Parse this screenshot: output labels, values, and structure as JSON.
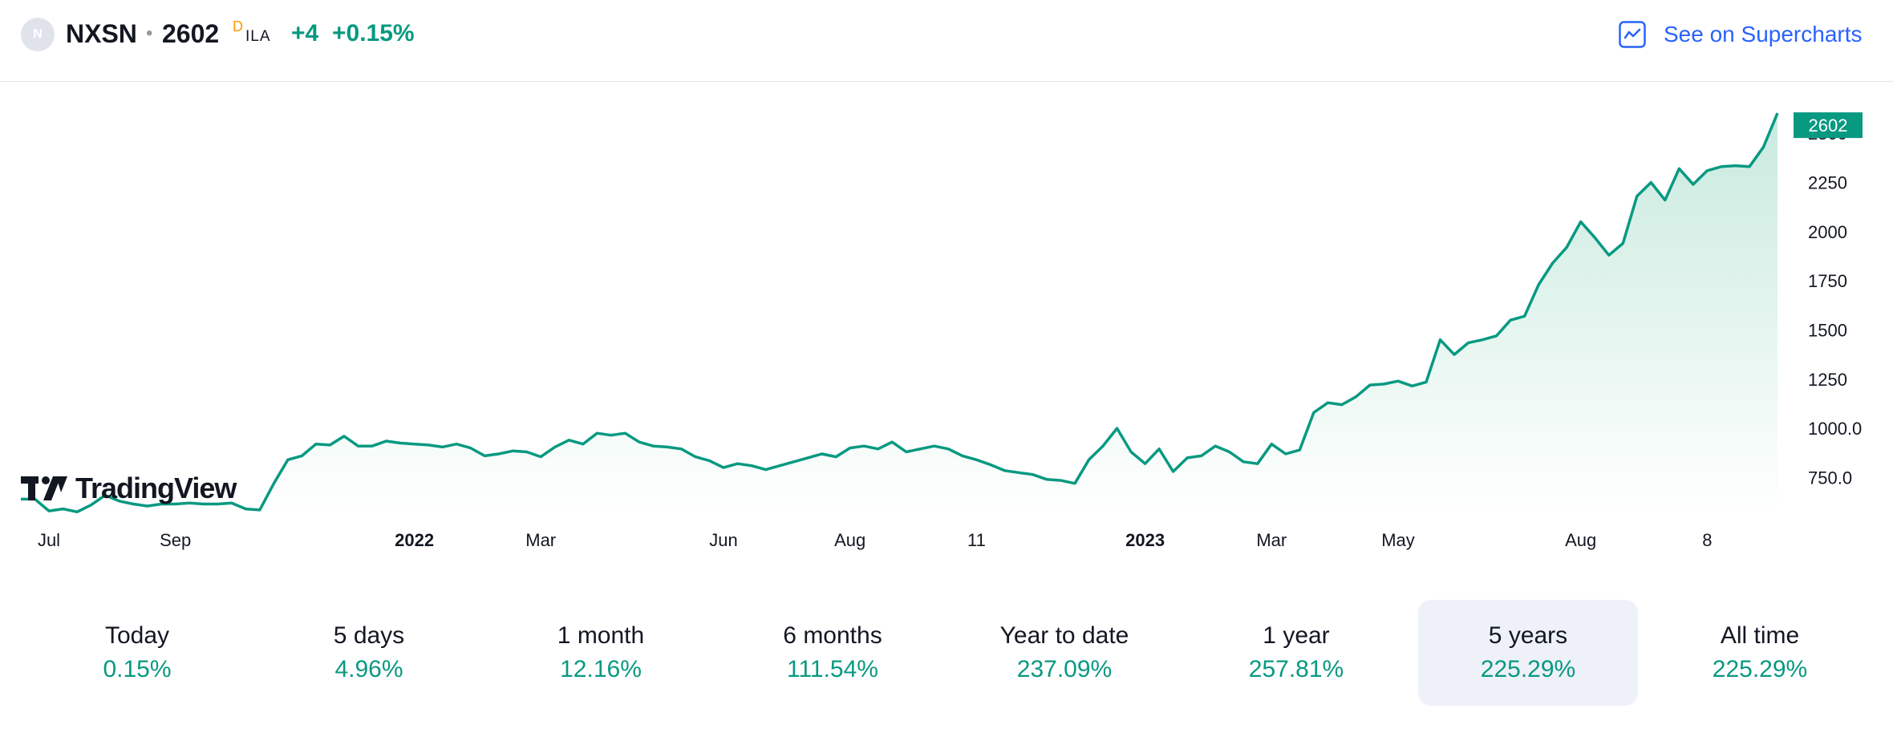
{
  "header": {
    "logo_letter": "N",
    "symbol": "NXSN",
    "separator": "•",
    "price": "2602",
    "delay_flag": "D",
    "exchange": "ILA",
    "change": "+4",
    "change_percent": "+0.15%",
    "supercharts_label": "See on Supercharts",
    "supercharts_icon": "chart-line-icon"
  },
  "chart": {
    "brand": "TradingView",
    "last_price_label": "2602",
    "colors": {
      "line": "#089981",
      "fill_top": "#c8eadf",
      "positive": "#089981",
      "label_bg": "#089981"
    }
  },
  "chart_data": {
    "type": "area",
    "y_ticks": [
      "750.0",
      "1000.0",
      "1250",
      "1500",
      "1750",
      "2000",
      "2250",
      "2500"
    ],
    "ylim": [
      560,
      2680
    ],
    "x_ticks": [
      {
        "label": "Jul",
        "bold": false,
        "idx": 2
      },
      {
        "label": "Sep",
        "bold": false,
        "idx": 11
      },
      {
        "label": "2022",
        "bold": true,
        "idx": 28
      },
      {
        "label": "Mar",
        "bold": false,
        "idx": 37
      },
      {
        "label": "Jun",
        "bold": false,
        "idx": 50
      },
      {
        "label": "Aug",
        "bold": false,
        "idx": 59
      },
      {
        "label": "11",
        "bold": false,
        "idx": 68
      },
      {
        "label": "2023",
        "bold": true,
        "idx": 80
      },
      {
        "label": "Mar",
        "bold": false,
        "idx": 89
      },
      {
        "label": "May",
        "bold": false,
        "idx": 98
      },
      {
        "label": "Aug",
        "bold": false,
        "idx": 111
      },
      {
        "label": "8",
        "bold": false,
        "idx": 120
      }
    ],
    "values": [
      640,
      640,
      580,
      590,
      575,
      610,
      660,
      630,
      615,
      605,
      615,
      615,
      620,
      615,
      615,
      620,
      590,
      585,
      720,
      840,
      860,
      920,
      915,
      960,
      910,
      910,
      935,
      925,
      920,
      915,
      905,
      920,
      900,
      860,
      870,
      885,
      880,
      855,
      905,
      940,
      920,
      975,
      965,
      975,
      930,
      910,
      905,
      895,
      855,
      835,
      800,
      820,
      810,
      790,
      810,
      830,
      850,
      870,
      855,
      900,
      910,
      895,
      930,
      880,
      895,
      910,
      895,
      860,
      840,
      815,
      785,
      775,
      765,
      740,
      735,
      720,
      840,
      910,
      1000,
      880,
      820,
      895,
      780,
      850,
      860,
      910,
      880,
      830,
      820,
      920,
      870,
      890,
      1080,
      1130,
      1120,
      1160,
      1220,
      1225,
      1240,
      1215,
      1235,
      1450,
      1375,
      1435,
      1450,
      1470,
      1550,
      1570,
      1730,
      1840,
      1920,
      2050,
      1970,
      1880,
      1940,
      2180,
      2250,
      2160,
      2320,
      2240,
      2310,
      2330,
      2335,
      2330,
      2430,
      2602
    ]
  },
  "periods": [
    {
      "label": "Today",
      "value": "0.15%",
      "active": false
    },
    {
      "label": "5 days",
      "value": "4.96%",
      "active": false
    },
    {
      "label": "1 month",
      "value": "12.16%",
      "active": false
    },
    {
      "label": "6 months",
      "value": "111.54%",
      "active": false
    },
    {
      "label": "Year to date",
      "value": "237.09%",
      "active": false
    },
    {
      "label": "1 year",
      "value": "257.81%",
      "active": false
    },
    {
      "label": "5 years",
      "value": "225.29%",
      "active": true
    },
    {
      "label": "All time",
      "value": "225.29%",
      "active": false
    }
  ]
}
